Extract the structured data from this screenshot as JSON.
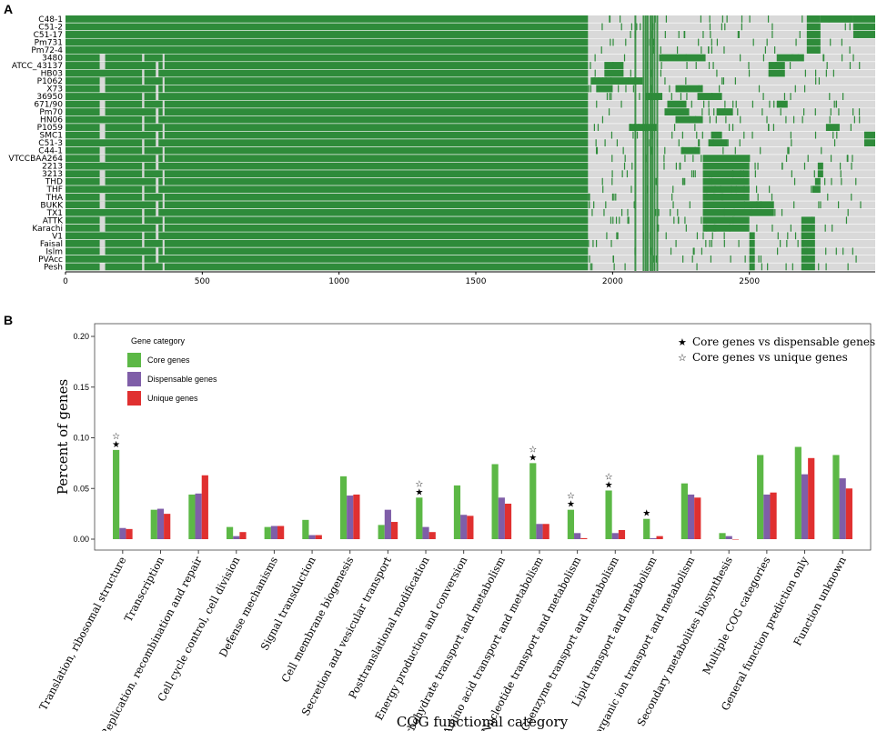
{
  "panels": {
    "a_label": "A",
    "b_label": "B"
  },
  "colors": {
    "core": "#5cb846",
    "dispensable": "#7f5ea8",
    "unique": "#e03030",
    "heat_green": "#2e8b3a",
    "heat_gray": "#d9d9d9"
  },
  "chart_data": [
    {
      "type": "heatmap",
      "title": "Gene presence/absence matrix",
      "strains": [
        "C48-1",
        "C51-2",
        "C51-17",
        "Pm731",
        "Pm72-4",
        "3480",
        "ATCC_43137",
        "HB03",
        "P1062",
        "X73",
        "36950",
        "671/90",
        "Pm70",
        "HN06",
        "P1059",
        "SMC1",
        "C51-3",
        "C44-1",
        "VTCCBAA264",
        "2213",
        "3213",
        "THD",
        "THF",
        "THA",
        "BUKK",
        "TX1",
        "ATTK",
        "Karachi",
        "V1",
        "Faisal",
        "Islm",
        "PVAcc",
        "Pesh"
      ],
      "xlim": [
        0,
        2960
      ],
      "xticks": [
        0,
        500,
        1000,
        1500,
        2000,
        2500
      ],
      "core_end": 1910,
      "strain_blocks": [
        [
          [
            2710,
            2760
          ],
          [
            2760,
            2880
          ],
          [
            2880,
            2960
          ]
        ],
        [
          [
            2710,
            2760
          ],
          [
            2880,
            2960
          ]
        ],
        [
          [
            2710,
            2760
          ],
          [
            2880,
            2960
          ]
        ],
        [
          [
            2710,
            2760
          ]
        ],
        [
          [
            2710,
            2760
          ]
        ],
        [
          [
            2170,
            2340
          ],
          [
            2600,
            2700
          ]
        ],
        [
          [
            1970,
            2040
          ],
          [
            2570,
            2630
          ]
        ],
        [
          [
            1970,
            2040
          ],
          [
            2570,
            2630
          ]
        ],
        [
          [
            1920,
            2110
          ]
        ],
        [
          [
            1940,
            2000
          ],
          [
            2230,
            2330
          ]
        ],
        [
          [
            2120,
            2180
          ],
          [
            2310,
            2400
          ]
        ],
        [
          [
            2200,
            2270
          ],
          [
            2600,
            2640
          ]
        ],
        [
          [
            2190,
            2280
          ],
          [
            2380,
            2440
          ]
        ],
        [
          [
            2230,
            2330
          ]
        ],
        [
          [
            2060,
            2160
          ],
          [
            2780,
            2830
          ]
        ],
        [
          [
            2360,
            2400
          ],
          [
            2920,
            2960
          ]
        ],
        [
          [
            2350,
            2420
          ],
          [
            2920,
            2960
          ]
        ],
        [
          [
            2250,
            2320
          ]
        ],
        [
          [
            2330,
            2500
          ]
        ],
        [
          [
            2330,
            2500
          ],
          [
            2750,
            2770
          ]
        ],
        [
          [
            2330,
            2500
          ],
          [
            2750,
            2770
          ]
        ],
        [
          [
            2330,
            2500
          ],
          [
            2740,
            2760
          ]
        ],
        [
          [
            2330,
            2500
          ],
          [
            2730,
            2760
          ]
        ],
        [
          [
            2330,
            2500
          ]
        ],
        [
          [
            2330,
            2590
          ]
        ],
        [
          [
            2330,
            2590
          ]
        ],
        [
          [
            2330,
            2500
          ],
          [
            2690,
            2740
          ]
        ],
        [
          [
            2330,
            2500
          ],
          [
            2690,
            2740
          ]
        ],
        [
          [
            2500,
            2520
          ],
          [
            2690,
            2740
          ]
        ],
        [
          [
            2500,
            2520
          ],
          [
            2690,
            2740
          ]
        ],
        [
          [
            2500,
            2520
          ],
          [
            2690,
            2740
          ]
        ],
        [
          [
            2500,
            2520
          ],
          [
            2690,
            2740
          ]
        ],
        [
          [
            2500,
            2520
          ],
          [
            2690,
            2740
          ]
        ]
      ]
    },
    {
      "type": "bar",
      "xlabel": "COG functional category",
      "ylabel": "Percent of genes",
      "ylim": [
        0,
        0.2
      ],
      "yticks": [
        "0.00",
        "0.05",
        "0.10",
        "0.15",
        "0.20"
      ],
      "legend": {
        "title": "Gene category",
        "position": "top-left"
      },
      "annotation_legend": {
        "position": "top-right",
        "filled": "Core genes vs dispensable genes",
        "open": "Core genes vs unique genes"
      },
      "categories": [
        "Translation, ribosomal structure",
        "Transcription",
        "Replication, recombination and repair",
        "Cell cycle control, cell division",
        "Defense mechanisms",
        "Signal transduction",
        "Cell membrane biogenesis",
        "Secretion and vesicular transport",
        "Posttranslational modification",
        "Energy production and conversion",
        "Carbohydrate transport and metabolism",
        "Amino acid transport and metabolism",
        "Nucleotide transport and metabolism",
        "Coenzyme transport and metabolism",
        "Lipid transport and metabolism",
        "Inorganic ion transport and metabolism",
        "Secondary metabolites biosynthesis",
        "Multiple COG categories",
        "General function prediction only",
        "Function unknown"
      ],
      "series": [
        {
          "name": "Core genes",
          "values": [
            0.088,
            0.029,
            0.044,
            0.012,
            0.012,
            0.019,
            0.062,
            0.014,
            0.041,
            0.053,
            0.074,
            0.075,
            0.029,
            0.048,
            0.02,
            0.055,
            0.006,
            0.083,
            0.091,
            0.083
          ]
        },
        {
          "name": "Dispensable genes",
          "values": [
            0.011,
            0.03,
            0.045,
            0.003,
            0.013,
            0.004,
            0.043,
            0.029,
            0.012,
            0.024,
            0.041,
            0.015,
            0.006,
            0.006,
            0.001,
            0.044,
            0.003,
            0.044,
            0.064,
            0.06
          ]
        },
        {
          "name": "Unique genes",
          "values": [
            0.01,
            0.025,
            0.063,
            0.007,
            0.013,
            0.004,
            0.044,
            0.017,
            0.007,
            0.023,
            0.035,
            0.015,
            0.001,
            0.009,
            0.003,
            0.041,
            0.0,
            0.046,
            0.08,
            0.05
          ]
        }
      ],
      "significance": [
        {
          "category": "Translation, ribosomal structure",
          "filled": true,
          "open": true
        },
        {
          "category": "Posttranslational modification",
          "filled": true,
          "open": true
        },
        {
          "category": "Amino acid transport and metabolism",
          "filled": true,
          "open": true
        },
        {
          "category": "Nucleotide transport and metabolism",
          "filled": true,
          "open": true
        },
        {
          "category": "Coenzyme transport and metabolism",
          "filled": true,
          "open": true
        },
        {
          "category": "Lipid transport and metabolism",
          "filled": true,
          "open": false
        }
      ]
    }
  ]
}
